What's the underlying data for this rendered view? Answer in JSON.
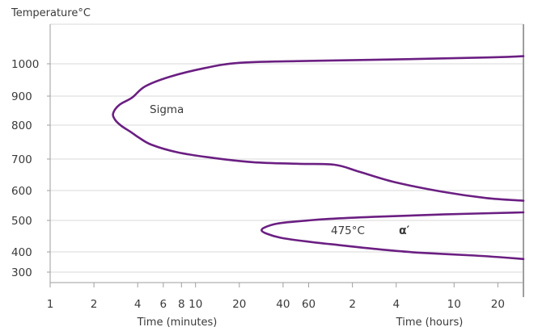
{
  "chart_data": {
    "type": "line",
    "title": "",
    "ylabel": "Temperature°C",
    "ylim": [
      260,
      1160
    ],
    "yticks": [
      "1000",
      "900",
      "800",
      "700",
      "600",
      "500",
      "400",
      "300"
    ],
    "x_scale": "log",
    "xlim_seconds": [
      60,
      108000
    ],
    "xticks": [
      {
        "label": "1",
        "seconds": 60
      },
      {
        "label": "2",
        "seconds": 120
      },
      {
        "label": "4",
        "seconds": 240
      },
      {
        "label": "6",
        "seconds": 360
      },
      {
        "label": "8",
        "seconds": 480
      },
      {
        "label": "10",
        "seconds": 600
      },
      {
        "label": "20",
        "seconds": 1200
      },
      {
        "label": "40",
        "seconds": 2400
      },
      {
        "label": "60",
        "seconds": 3600
      },
      {
        "label": "2",
        "seconds": 7200
      },
      {
        "label": "4",
        "seconds": 14400
      },
      {
        "label": "10",
        "seconds": 36000
      },
      {
        "label": "20",
        "seconds": 72000
      }
    ],
    "xlabel_minutes": "Time (minutes)",
    "xlabel_hours": "Time (hours)",
    "grid": true,
    "series_color": "#6b1f82",
    "series": [
      {
        "name": "Sigma",
        "points": [
          {
            "t": 108000,
            "y": 1023
          },
          {
            "t": 60000,
            "y": 1019
          },
          {
            "t": 10000,
            "y": 1012
          },
          {
            "t": 3000,
            "y": 1008
          },
          {
            "t": 1200,
            "y": 1003
          },
          {
            "t": 700,
            "y": 987
          },
          {
            "t": 400,
            "y": 960
          },
          {
            "t": 270,
            "y": 930
          },
          {
            "t": 220,
            "y": 895
          },
          {
            "t": 180,
            "y": 870
          },
          {
            "t": 163,
            "y": 842
          },
          {
            "t": 167,
            "y": 820
          },
          {
            "t": 185,
            "y": 798
          },
          {
            "t": 215,
            "y": 780
          },
          {
            "t": 245,
            "y": 763
          },
          {
            "t": 300,
            "y": 742
          },
          {
            "t": 450,
            "y": 720
          },
          {
            "t": 800,
            "y": 703
          },
          {
            "t": 1500,
            "y": 690
          },
          {
            "t": 3000,
            "y": 685
          },
          {
            "t": 5400,
            "y": 682
          },
          {
            "t": 8000,
            "y": 660
          },
          {
            "t": 14000,
            "y": 627
          },
          {
            "t": 30000,
            "y": 596
          },
          {
            "t": 60000,
            "y": 575
          },
          {
            "t": 108000,
            "y": 566
          }
        ]
      },
      {
        "name": "α′ (475°C)",
        "points": [
          {
            "t": 108000,
            "y": 527
          },
          {
            "t": 30000,
            "y": 520
          },
          {
            "t": 10000,
            "y": 512
          },
          {
            "t": 5000,
            "y": 505
          },
          {
            "t": 3000,
            "y": 497
          },
          {
            "t": 2200,
            "y": 490
          },
          {
            "t": 1800,
            "y": 478
          },
          {
            "t": 1710,
            "y": 468
          },
          {
            "t": 1850,
            "y": 458
          },
          {
            "t": 2300,
            "y": 445
          },
          {
            "t": 3500,
            "y": 433
          },
          {
            "t": 6000,
            "y": 421
          },
          {
            "t": 10000,
            "y": 410
          },
          {
            "t": 20000,
            "y": 397
          },
          {
            "t": 50000,
            "y": 382
          },
          {
            "t": 108000,
            "y": 365
          }
        ]
      }
    ],
    "annotations": {
      "sigma": "Sigma",
      "t475": "475°C",
      "alpha": "α′"
    }
  }
}
